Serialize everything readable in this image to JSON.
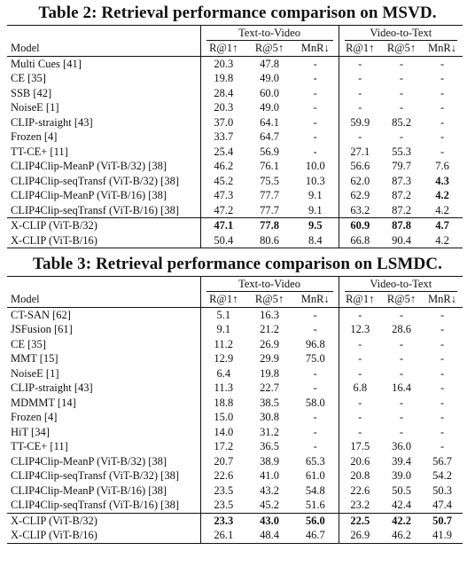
{
  "table2": {
    "caption": "Table 2: Retrieval performance comparison on MSVD.",
    "group_t2v": "Text-to-Video",
    "group_v2t": "Video-to-Text",
    "headers": [
      "Model",
      "R@1↑",
      "R@5↑",
      "MnR↓",
      "R@1↑",
      "R@5↑",
      "MnR↓"
    ],
    "rows": [
      [
        "Multi Cues [41]",
        "20.3",
        "47.8",
        "-",
        "-",
        "-",
        "-"
      ],
      [
        "CE [35]",
        "19.8",
        "49.0",
        "-",
        "-",
        "-",
        "-"
      ],
      [
        "SSB [42]",
        "28.4",
        "60.0",
        "-",
        "-",
        "-",
        "-"
      ],
      [
        "NoiseE [1]",
        "20.3",
        "49.0",
        "-",
        "-",
        "-",
        "-"
      ],
      [
        "CLIP-straight [43]",
        "37.0",
        "64.1",
        "-",
        "59.9",
        "85.2",
        "-"
      ],
      [
        "Frozen [4]",
        "33.7",
        "64.7",
        "-",
        "-",
        "-",
        "-"
      ],
      [
        "TT-CE+ [11]",
        "25.4",
        "56.9",
        "-",
        "27.1",
        "55.3",
        "-"
      ],
      [
        "CLIP4Clip-MeanP (ViT-B/32) [38]",
        "46.2",
        "76.1",
        "10.0",
        "56.6",
        "79.7",
        "7.6"
      ],
      [
        "CLIP4Clip-seqTransf (ViT-B/32) [38]",
        "45.2",
        "75.5",
        "10.3",
        "62.0",
        "87.3",
        "4.3"
      ],
      [
        "CLIP4Clip-MeanP (ViT-B/16) [38]",
        "47.3",
        "77.7",
        "9.1",
        "62.9",
        "87.2",
        "4.2"
      ],
      [
        "CLIP4Clip-seqTransf (ViT-B/16) [38]",
        "47.2",
        "77.7",
        "9.1",
        "63.2",
        "87.2",
        "4.2"
      ]
    ],
    "xclip_rows": [
      [
        "X-CLIP (ViT-B/32)",
        "47.1",
        "77.8",
        "9.5",
        "60.9",
        "87.8",
        "4.7"
      ],
      [
        "X-CLIP (ViT-B/16)",
        "50.4",
        "80.6",
        "8.4",
        "66.8",
        "90.4",
        "4.2"
      ]
    ]
  },
  "table3": {
    "caption": "Table 3: Retrieval performance comparison on LSMDC.",
    "group_t2v": "Text-to-Video",
    "group_v2t": "Video-to-Text",
    "headers": [
      "Model",
      "R@1↑",
      "R@5↑",
      "MnR↓",
      "R@1↑",
      "R@5↑",
      "MnR↓"
    ],
    "rows": [
      [
        "CT-SAN [62]",
        "5.1",
        "16.3",
        "-",
        "-",
        "-",
        "-"
      ],
      [
        "JSFusion [61]",
        "9.1",
        "21.2",
        "-",
        "12.3",
        "28.6",
        "-"
      ],
      [
        "CE [35]",
        "11.2",
        "26.9",
        "96.8",
        "-",
        "-",
        "-"
      ],
      [
        "MMT [15]",
        "12.9",
        "29.9",
        "75.0",
        "-",
        "-",
        "-"
      ],
      [
        "NoiseE [1]",
        "6.4",
        "19.8",
        "-",
        "-",
        "-",
        "-"
      ],
      [
        "CLIP-straight [43]",
        "11.3",
        "22.7",
        "-",
        "6.8",
        "16.4",
        "-"
      ],
      [
        "MDMMT [14]",
        "18.8",
        "38.5",
        "58.0",
        "-",
        "-",
        "-"
      ],
      [
        "Frozen [4]",
        "15.0",
        "30.8",
        "-",
        "-",
        "-",
        "-"
      ],
      [
        "HiT [34]",
        "14.0",
        "31.2",
        "-",
        "-",
        "-",
        "-"
      ],
      [
        "TT-CE+ [11]",
        "17.2",
        "36.5",
        "-",
        "17.5",
        "36.0",
        "-"
      ],
      [
        "CLIP4Clip-MeanP (ViT-B/32) [38]",
        "20.7",
        "38.9",
        "65.3",
        "20.6",
        "39.4",
        "56.7"
      ],
      [
        "CLIP4Clip-seqTransf (ViT-B/32) [38]",
        "22.6",
        "41.0",
        "61.0",
        "20.8",
        "39.0",
        "54.2"
      ],
      [
        "CLIP4Clip-MeanP (ViT-B/16) [38]",
        "23.5",
        "43.2",
        "54.8",
        "22.6",
        "50.5",
        "50.3"
      ],
      [
        "CLIP4Clip-seqTransf (ViT-B/16) [38]",
        "23.5",
        "45.2",
        "51.6",
        "23.2",
        "42.4",
        "47.4"
      ]
    ],
    "xclip_rows": [
      [
        "X-CLIP (ViT-B/32)",
        "23.3",
        "43.0",
        "56.0",
        "22.5",
        "42.2",
        "50.7"
      ],
      [
        "X-CLIP (ViT-B/16)",
        "26.1",
        "48.4",
        "46.7",
        "26.9",
        "46.2",
        "41.9"
      ]
    ]
  },
  "bold_cells": {
    "table2": [
      [
        9,
        6
      ],
      [
        10,
        6
      ],
      [
        12,
        1
      ],
      [
        12,
        2
      ],
      [
        12,
        3
      ],
      [
        12,
        4
      ],
      [
        12,
        5
      ],
      [
        12,
        6
      ]
    ],
    "table3": [
      [
        15,
        1
      ],
      [
        15,
        2
      ],
      [
        15,
        3
      ],
      [
        15,
        4
      ],
      [
        15,
        5
      ],
      [
        15,
        6
      ]
    ]
  }
}
